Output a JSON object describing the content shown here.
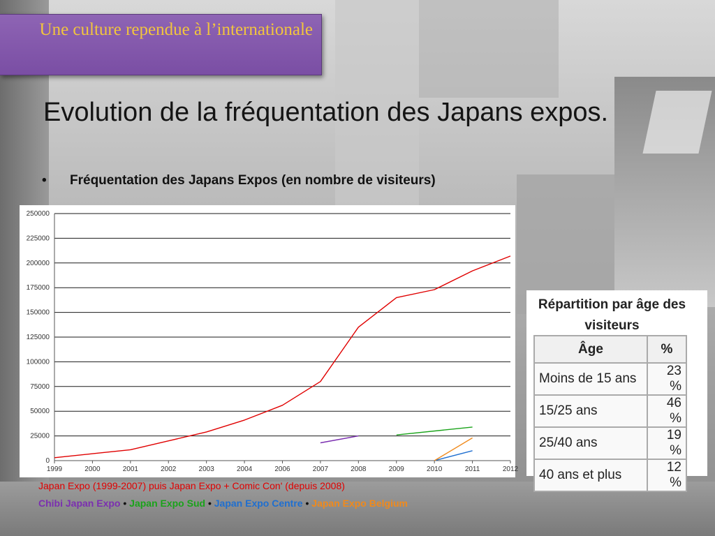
{
  "slide": {
    "section_title": "Une culture rependue à l’internationale",
    "heading": "Evolution de la fréquentation des Japans expos.",
    "bullet": "Fréquentation des Japans Expos (en nombre de visiteurs)",
    "bullet_glyph": "•"
  },
  "colors": {
    "title_bg": "#8259ac",
    "title_text": "#f2c53d",
    "main_series": "#e00000",
    "chibi": "#7b2fb0",
    "sud": "#1aa31a",
    "centre": "#1f6fd0",
    "belgium": "#f08a1c"
  },
  "chart_data": {
    "type": "line",
    "title": "",
    "xlabel": "",
    "ylabel": "",
    "x_ticks": [
      "1999",
      "2000",
      "2001",
      "2002",
      "2003",
      "2004",
      "2006",
      "2007",
      "2008",
      "2009",
      "2010",
      "2011",
      "2012"
    ],
    "y_ticks": [
      "0",
      "25000",
      "50000",
      "75000",
      "100000",
      "125000",
      "150000",
      "175000",
      "200000",
      "225000",
      "250000"
    ],
    "ylim": [
      0,
      250000
    ],
    "grid": "horizontal",
    "series": [
      {
        "key": "main",
        "color": "#e00000",
        "points": [
          [
            0,
            3000
          ],
          [
            1,
            7000
          ],
          [
            2,
            11000
          ],
          [
            3,
            20000
          ],
          [
            4,
            29000
          ],
          [
            5,
            41000
          ],
          [
            6,
            56000
          ],
          [
            7,
            80000
          ],
          [
            8,
            135000
          ],
          [
            9,
            165000
          ],
          [
            10,
            173000
          ],
          [
            11,
            192000
          ],
          [
            12,
            207000
          ]
        ]
      },
      {
        "key": "chibi",
        "color": "#7b2fb0",
        "points": [
          [
            7,
            18000
          ],
          [
            8,
            25000
          ]
        ]
      },
      {
        "key": "sud",
        "color": "#1aa31a",
        "points": [
          [
            9,
            26000
          ],
          [
            11,
            34000
          ]
        ]
      },
      {
        "key": "centre",
        "color": "#1f6fd0",
        "points": [
          [
            10,
            0
          ],
          [
            11,
            10000
          ]
        ]
      },
      {
        "key": "belgium",
        "color": "#f08a1c",
        "points": [
          [
            10,
            0
          ],
          [
            11,
            23000
          ]
        ]
      }
    ]
  },
  "age_table": {
    "caption": "Répartition par âge des visiteurs",
    "headers": [
      "Âge",
      "%"
    ],
    "rows": [
      {
        "label": "Moins de 15 ans",
        "pct": "23 %"
      },
      {
        "label": "15/25 ans",
        "pct": "46 %"
      },
      {
        "label": "25/40 ans",
        "pct": "19 %"
      },
      {
        "label": "40 ans et plus",
        "pct": "12 %"
      }
    ]
  },
  "legend": {
    "line1": "Japan Expo (1999-2007) puis Japan Expo + Comic Con' (depuis 2008)",
    "items": [
      "Chibi Japan Expo",
      "Japan Expo Sud",
      "Japan Expo Centre",
      "Japan Expo Belgium"
    ],
    "separator": " • "
  }
}
